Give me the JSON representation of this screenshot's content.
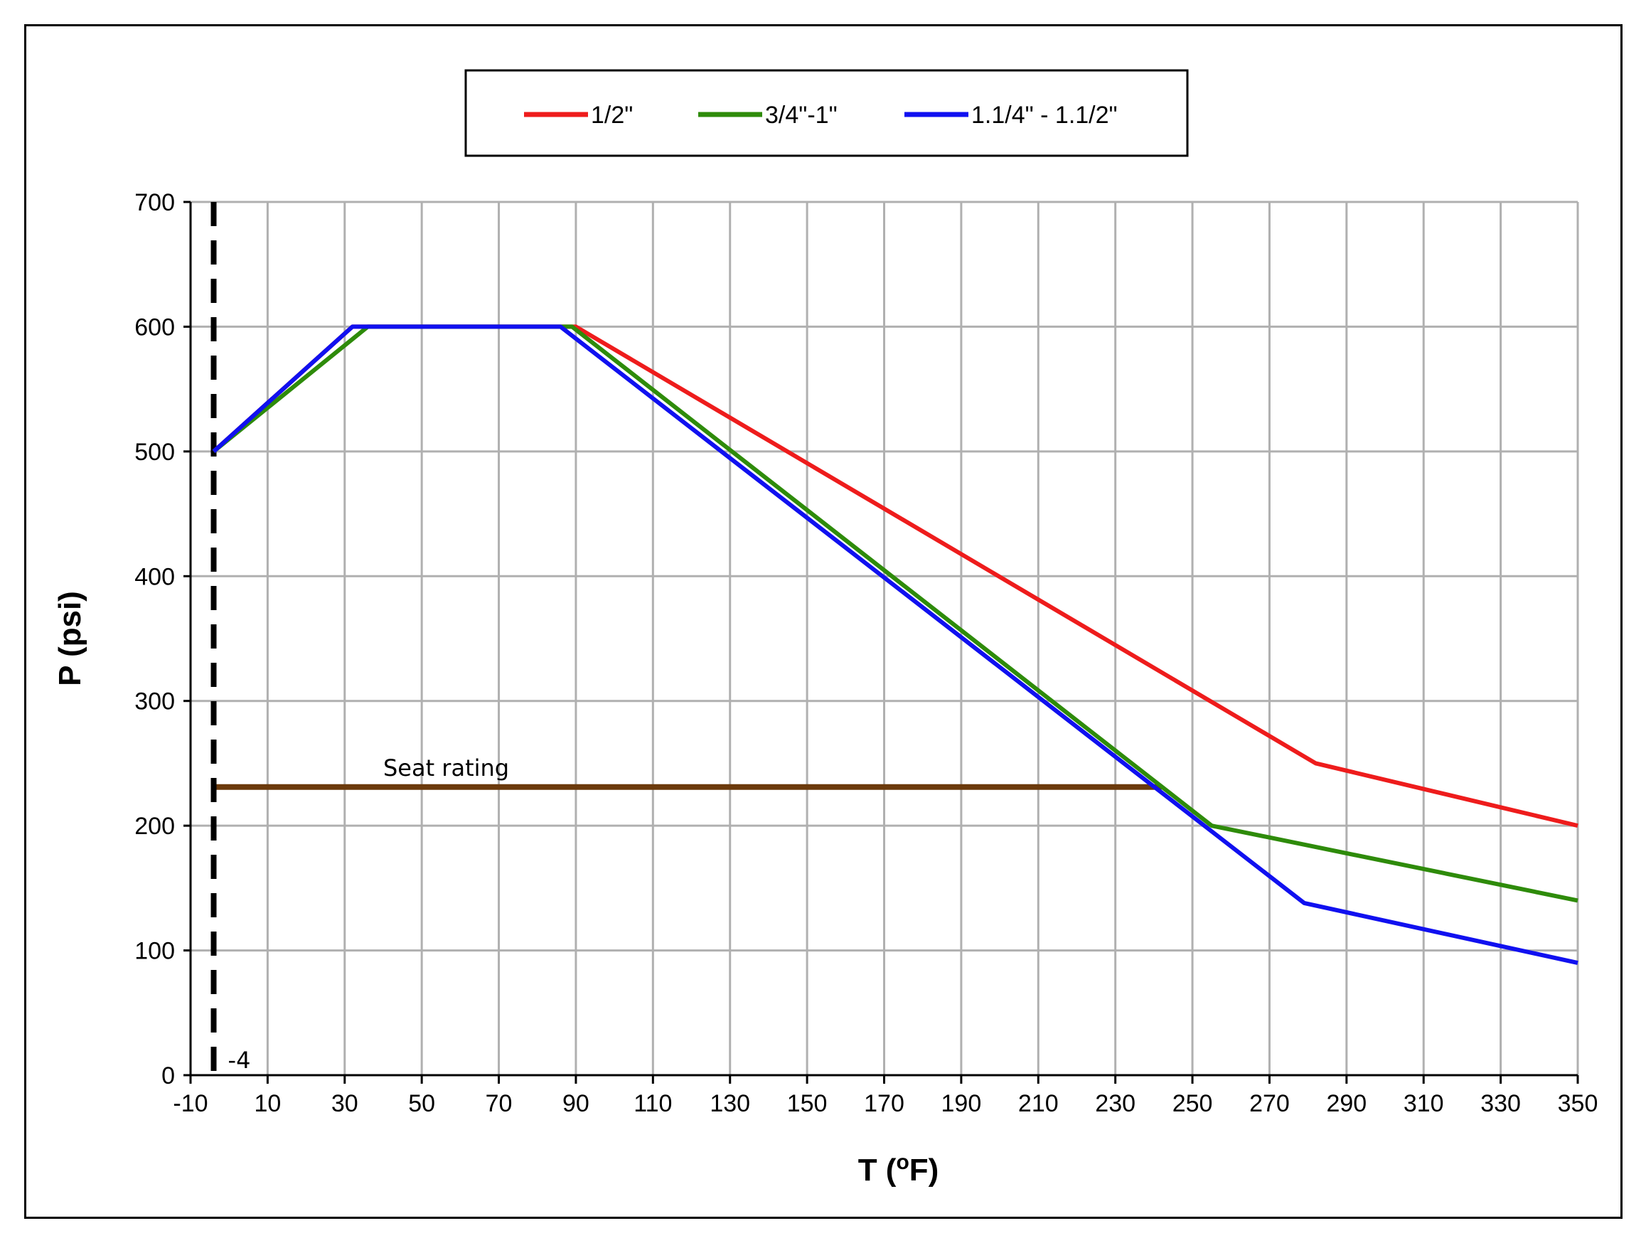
{
  "chart_data": {
    "type": "line",
    "title": "",
    "xlabel": "T (",
    "xlabel_sup": "o",
    "xlabel_unit": "F)",
    "ylabel": "P (psi)",
    "xlim": [
      -10,
      350
    ],
    "ylim": [
      0,
      700
    ],
    "x_ticks": [
      -10,
      10,
      30,
      50,
      70,
      90,
      110,
      130,
      150,
      170,
      190,
      210,
      230,
      250,
      270,
      290,
      310,
      330,
      350
    ],
    "x_gridlines": [
      10,
      30,
      50,
      70,
      90,
      110,
      130,
      150,
      170,
      190,
      210,
      230,
      250,
      270,
      290,
      310,
      330,
      350
    ],
    "y_ticks": [
      0,
      100,
      200,
      300,
      400,
      500,
      600,
      700
    ],
    "grid": true,
    "legend_position": "top-center, boxed",
    "series": [
      {
        "name": "1/2\"",
        "color": "#ee1c1c",
        "x": [
          -4,
          32,
          90,
          282,
          350
        ],
        "y": [
          500,
          600,
          600,
          250,
          200
        ]
      },
      {
        "name": "3/4\"-1\"",
        "color": "#2e8b0a",
        "x": [
          -4,
          36,
          89,
          255,
          350
        ],
        "y": [
          500,
          600,
          600,
          200,
          140
        ]
      },
      {
        "name": "1.1/4\" - 1.1/2\"",
        "color": "#1010f0",
        "x": [
          -4,
          32,
          86,
          279,
          350
        ],
        "y": [
          500,
          600,
          600,
          138,
          90
        ]
      }
    ],
    "reference_lines": [
      {
        "label": "Seat rating",
        "color": "#6b3a0c",
        "x": [
          -4,
          242
        ],
        "y": [
          231,
          231
        ]
      },
      {
        "label": "-4",
        "color": "#000000",
        "style": "dashed",
        "x": -4
      }
    ]
  }
}
